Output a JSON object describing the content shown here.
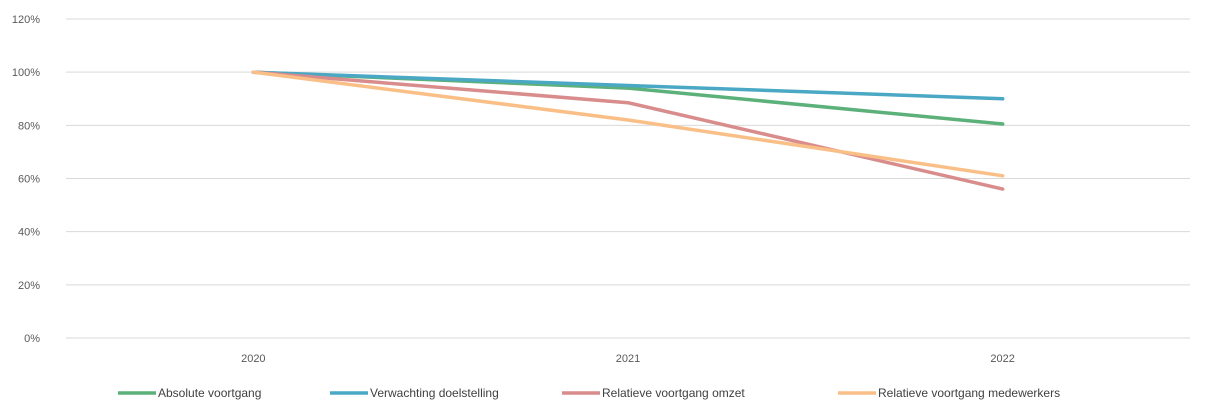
{
  "chart_data": {
    "type": "line",
    "x": [
      "2020",
      "2021",
      "2022"
    ],
    "ylim": [
      0,
      120
    ],
    "ytick_labels": [
      "0%",
      "20%",
      "40%",
      "60%",
      "80%",
      "100%",
      "120%"
    ],
    "yticks": [
      0,
      20,
      40,
      60,
      80,
      100,
      120
    ],
    "grid": true,
    "legend_position": "bottom",
    "series": [
      {
        "name": "Absolute voortgang",
        "color": "#5cb07a",
        "values": [
          100,
          94,
          80.5
        ]
      },
      {
        "name": "Verwachting doelstelling",
        "color": "#4aa8c4",
        "values": [
          100,
          95,
          90
        ]
      },
      {
        "name": "Relatieve voortgang omzet",
        "color": "#d98c8c",
        "values": [
          100,
          88.5,
          56
        ]
      },
      {
        "name": "Relatieve voortgang medewerkers",
        "color": "#f9bf87",
        "values": [
          100,
          82,
          61
        ]
      }
    ]
  }
}
